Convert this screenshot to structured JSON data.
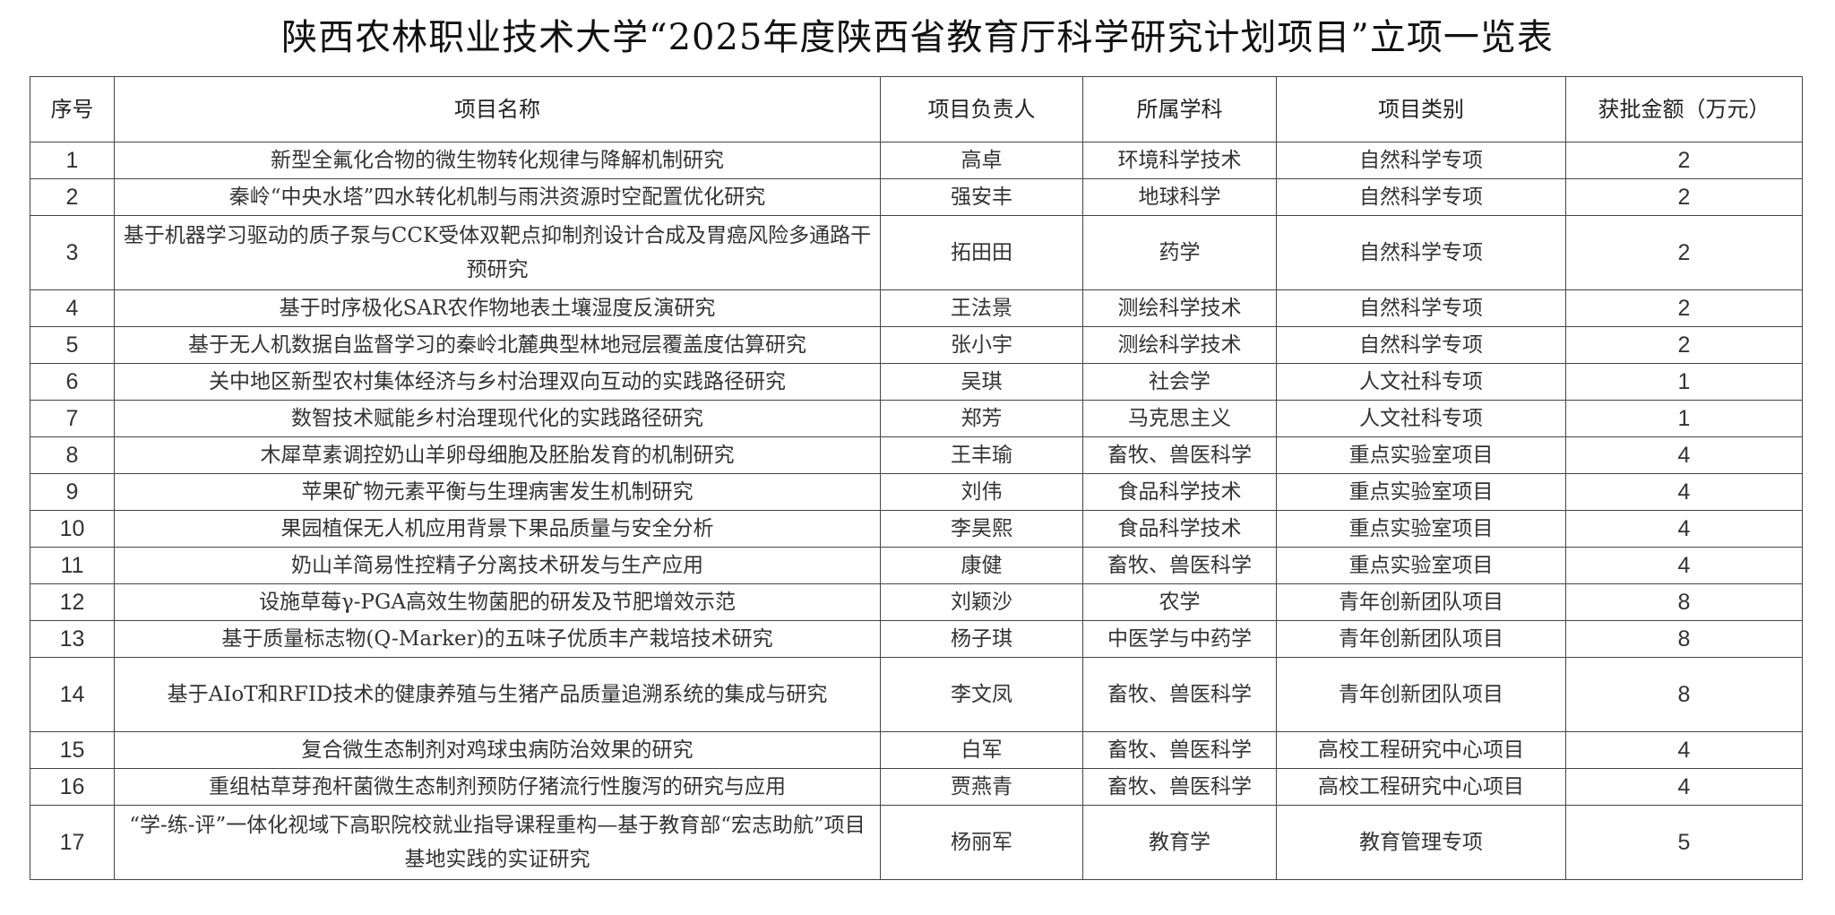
{
  "title": "陕西农林职业技术大学“2025年度陕西省教育厅科学研究计划项目”立项一览表",
  "headers": [
    "序号",
    "项目名称",
    "项目负责人",
    "所属学科",
    "项目类别",
    "获批金额（万元）"
  ],
  "rows": [
    {
      "no": "1",
      "name": "新型全氟化合物的微生物转化规律与降解机制研究",
      "leader": "高卓",
      "discipline": "环境科学技术",
      "category": "自然科学专项",
      "amount": "2"
    },
    {
      "no": "2",
      "name": "秦岭“中央水塔”四水转化机制与雨洪资源时空配置优化研究",
      "leader": "强安丰",
      "discipline": "地球科学",
      "category": "自然科学专项",
      "amount": "2"
    },
    {
      "no": "3",
      "name": "基于机器学习驱动的质子泵与CCK受体双靶点抑制剂设计合成及胃癌风险多通路干预研究",
      "leader": "拓田田",
      "discipline": "药学",
      "category": "自然科学专项",
      "amount": "2"
    },
    {
      "no": "4",
      "name": "基于时序极化SAR农作物地表土壤湿度反演研究",
      "leader": "王法景",
      "discipline": "测绘科学技术",
      "category": "自然科学专项",
      "amount": "2"
    },
    {
      "no": "5",
      "name": "基于无人机数据自监督学习的秦岭北麓典型林地冠层覆盖度估算研究",
      "leader": "张小宇",
      "discipline": "测绘科学技术",
      "category": "自然科学专项",
      "amount": "2"
    },
    {
      "no": "6",
      "name": "关中地区新型农村集体经济与乡村治理双向互动的实践路径研究",
      "leader": "吴琪",
      "discipline": "社会学",
      "category": "人文社科专项",
      "amount": "1"
    },
    {
      "no": "7",
      "name": "数智技术赋能乡村治理现代化的实践路径研究",
      "leader": "郑芳",
      "discipline": "马克思主义",
      "category": "人文社科专项",
      "amount": "1"
    },
    {
      "no": "8",
      "name": "木犀草素调控奶山羊卵母细胞及胚胎发育的机制研究",
      "leader": "王丰瑜",
      "discipline": "畜牧、兽医科学",
      "category": "重点实验室项目",
      "amount": "4"
    },
    {
      "no": "9",
      "name": "苹果矿物元素平衡与生理病害发生机制研究",
      "leader": "刘伟",
      "discipline": "食品科学技术",
      "category": "重点实验室项目",
      "amount": "4"
    },
    {
      "no": "10",
      "name": "果园植保无人机应用背景下果品质量与安全分析",
      "leader": "李昊熙",
      "discipline": "食品科学技术",
      "category": "重点实验室项目",
      "amount": "4"
    },
    {
      "no": "11",
      "name": "奶山羊简易性控精子分离技术研发与生产应用",
      "leader": "康健",
      "discipline": "畜牧、兽医科学",
      "category": "重点实验室项目",
      "amount": "4"
    },
    {
      "no": "12",
      "name": "设施草莓γ-PGA高效生物菌肥的研发及节肥增效示范",
      "leader": "刘颖沙",
      "discipline": "农学",
      "category": "青年创新团队项目",
      "amount": "8"
    },
    {
      "no": "13",
      "name": "基于质量标志物(Q-Marker)的五味子优质丰产栽培技术研究",
      "leader": "杨子琪",
      "discipline": "中医学与中药学",
      "category": "青年创新团队项目",
      "amount": "8"
    },
    {
      "no": "14",
      "name": "基于AIoT和RFID技术的健康养殖与生猪产品质量追溯系统的集成与研究",
      "leader": "李文凤",
      "discipline": "畜牧、兽医科学",
      "category": "青年创新团队项目",
      "amount": "8"
    },
    {
      "no": "15",
      "name": "复合微生态制剂对鸡球虫病防治效果的研究",
      "leader": "白军",
      "discipline": "畜牧、兽医科学",
      "category": "高校工程研究中心项目",
      "amount": "4"
    },
    {
      "no": "16",
      "name": "重组枯草芽孢杆菌微生态制剂预防仔猪流行性腹泻的研究与应用",
      "leader": "贾燕青",
      "discipline": "畜牧、兽医科学",
      "category": "高校工程研究中心项目",
      "amount": "4"
    },
    {
      "no": "17",
      "name": "“学-练-评”一体化视域下高职院校就业指导课程重构—基于教育部“宏志助航”项目基地实践的实证研究",
      "leader": "杨丽军",
      "discipline": "教育学",
      "category": "教育管理专项",
      "amount": "5"
    }
  ]
}
